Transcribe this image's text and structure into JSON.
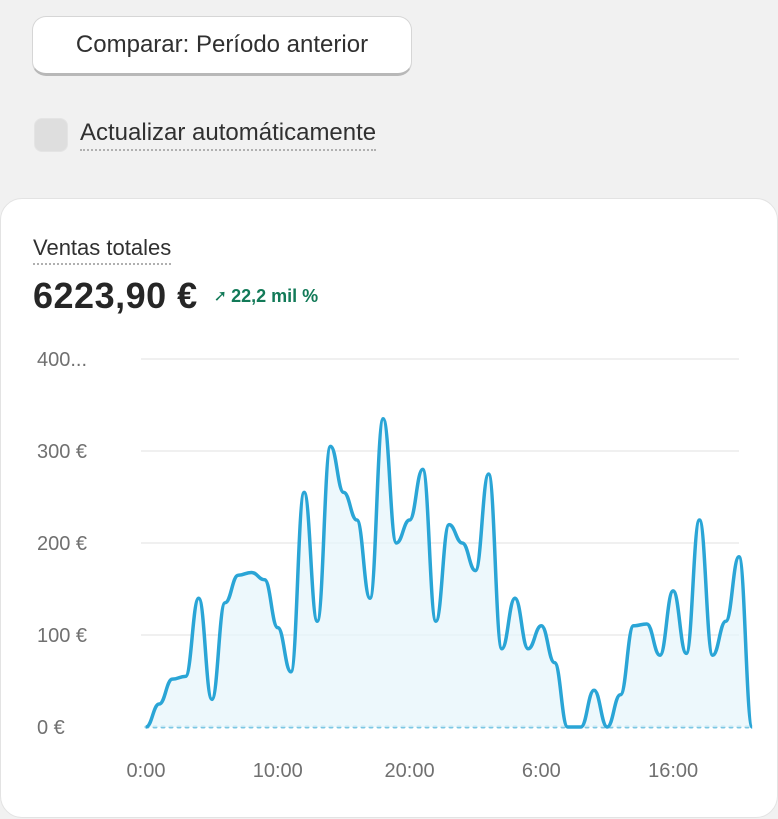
{
  "compare_button": {
    "label": "Comparar: Período anterior"
  },
  "auto_refresh": {
    "label": "Actualizar automáticamente",
    "checked": false
  },
  "metric": {
    "title": "Ventas totales",
    "value": "6223,90 €",
    "change": "22,2 mil %",
    "change_icon": "arrow-up-right-icon",
    "change_color": "#127a58"
  },
  "colors": {
    "line": "#2aa5d6",
    "fill": "#e6f5fb",
    "comparison": "#7cc7e3",
    "grid": "#ececec"
  },
  "chart_data": {
    "type": "area",
    "y_tick_labels": [
      "400...",
      "300 €",
      "200 €",
      "100 €",
      "0 €"
    ],
    "y_ticks": [
      400,
      300,
      200,
      100,
      0
    ],
    "ylim": [
      0,
      400
    ],
    "x_tick_labels": [
      "0:00",
      "10:00",
      "20:00",
      "6:00",
      "16:00"
    ],
    "x_tick_positions": [
      0,
      10,
      20,
      30,
      40
    ],
    "xlim": [
      0,
      45
    ],
    "series": [
      {
        "values": [
          0,
          25,
          52,
          55,
          140,
          30,
          135,
          165,
          168,
          160,
          108,
          60,
          255,
          115,
          305,
          255,
          225,
          140,
          335,
          200,
          225,
          280,
          115,
          220,
          200,
          170,
          275,
          85,
          140,
          85,
          110,
          70,
          0,
          0,
          40,
          0,
          35,
          110,
          112,
          78,
          148,
          80,
          225,
          78,
          115,
          185,
          0
        ]
      },
      {
        "values": [
          0,
          0,
          0,
          0,
          0,
          0,
          0,
          0,
          0,
          0,
          0,
          0,
          0,
          0,
          0,
          0,
          0,
          0,
          0,
          0,
          0,
          0,
          0,
          0,
          0,
          0,
          0,
          0,
          0,
          0,
          0,
          0,
          0,
          0,
          0,
          0,
          0,
          0,
          0,
          0,
          0,
          0,
          0,
          0,
          0,
          0,
          0
        ]
      }
    ],
    "grid": true
  }
}
